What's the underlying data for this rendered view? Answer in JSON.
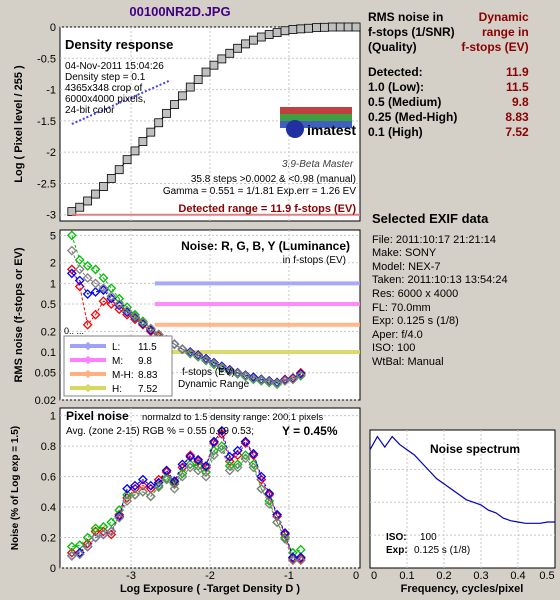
{
  "title": "00100NR2D.JPG",
  "density": {
    "heading": "Density response",
    "info": [
      "04-Nov-2011 15:04:26",
      "Density step = 0.1",
      "4365x348 crop of",
      "6000x4000 pixels,",
      "24-bit color"
    ],
    "logo": "imatest",
    "version": "3.9-Beta  Master",
    "stats": [
      "35.8 steps >0.0002 & <0.98 (manual)",
      "Gamma = 0.551 = 1/1.81  Exp.err = 1.26 EV"
    ],
    "detected": "Detected range = 11.9 f-stops (EV)",
    "ylabel": "Log ( Pixel level / 255 )",
    "yticks": [
      "0",
      "-0.5",
      "-1",
      "-1.5",
      "-2",
      "-2.5",
      "-3"
    ]
  },
  "noise": {
    "heading": "Noise: R, G, B, Y (Luminance)",
    "subheading": "in f-stops (EV)",
    "ylabel": "RMS noise (f-stops or EV)",
    "yticks": [
      "5",
      "2",
      "1",
      "0.5",
      "0.2",
      "0.1",
      "0.05",
      "0.02"
    ],
    "legend": [
      {
        "label": "L:",
        "value": "11.5",
        "color": "#a0a0ff"
      },
      {
        "label": "M:",
        "value": "9.8",
        "color": "#ff80ff"
      },
      {
        "label": "M-H:",
        "value": "8.83",
        "color": "#ffb080"
      },
      {
        "label": "H:",
        "value": "7.52",
        "color": "#d8d860"
      }
    ],
    "note1": "f-stops (EV)",
    "note2": "Dynamic Range",
    "partial": "0.. ..."
  },
  "pixel": {
    "heading": "Pixel noise",
    "norm": "normalzd to 1.5 density range: 200.1 pixels",
    "avg": "Avg. (zone 2-15) RGB % = 0.55  0.49  0.53;",
    "y": "Y = 0.45%",
    "ylabel": "Noise (% of Log exp = 1.5)",
    "yticks": [
      "1",
      "0.8",
      "0.6",
      "0.4",
      "0.2",
      "0"
    ],
    "xlabel": "Log Exposure ( -Target Density D )",
    "xticks": [
      "-3",
      "-2",
      "-1",
      "0"
    ]
  },
  "spectrum": {
    "heading": "Noise spectrum",
    "iso_label": "ISO:",
    "iso": "100",
    "exp_label": "Exp:",
    "exp": "0.125 s   (1/8)",
    "xlabel": "Frequency, cycles/pixel",
    "xticks": [
      "0",
      "0.1",
      "0.2",
      "0.3",
      "0.4",
      "0.5"
    ]
  },
  "rms_table": {
    "header": [
      [
        "RMS noise in",
        "Dynamic"
      ],
      [
        "f-stops (1/SNR)",
        "range in"
      ],
      [
        "(Quality)",
        "f-stops (EV)"
      ]
    ],
    "rows": [
      {
        "label": "Detected:",
        "value": "11.9"
      },
      {
        "label": "1.0   (Low):",
        "value": "11.5"
      },
      {
        "label": "0.5   (Medium)",
        "value": "9.8"
      },
      {
        "label": "0.25 (Med-High)",
        "value": "8.83"
      },
      {
        "label": "0.1   (High)",
        "value": "7.52"
      }
    ]
  },
  "exif": {
    "heading": "Selected EXIF data",
    "lines": [
      "File:  2011:10:17 21:21:14",
      "Make:  SONY",
      "Model: NEX-7",
      "Taken:  2011:10:13 13:54:24",
      "Res:    6000 x 4000",
      "FL:  70.0mm",
      "Exp:  0.125 s  (1/8)",
      "Aper:  f/4.0",
      "ISO:   100",
      "WtBal: Manual"
    ]
  },
  "colors": {
    "R": "#ff0000",
    "G": "#00c000",
    "B": "#0000ff",
    "Y": "#808080",
    "density_markers": "#a0a0a0",
    "fit_line": "#4040ff",
    "detected_text": "#8b0000",
    "title": "#400080"
  },
  "chart_data": [
    {
      "type": "line",
      "title": "Density response",
      "xlabel": "Log Exposure ( -Target Density D )",
      "ylabel": "Log ( Pixel level / 255 )",
      "xlim": [
        -3.9,
        -0.1
      ],
      "ylim": [
        -3.1,
        0
      ],
      "series": [
        {
          "name": "Density",
          "x": [
            -3.75,
            -3.65,
            -3.55,
            -3.45,
            -3.35,
            -3.25,
            -3.15,
            -3.05,
            -2.95,
            -2.85,
            -2.75,
            -2.65,
            -2.55,
            -2.45,
            -2.35,
            -2.25,
            -2.15,
            -2.05,
            -1.95,
            -1.85,
            -1.75,
            -1.65,
            -1.55,
            -1.45,
            -1.35,
            -1.25,
            -1.15,
            -1.05,
            -0.95,
            -0.85,
            -0.75,
            -0.65,
            -0.55,
            -0.45,
            -0.35,
            -0.25,
            -0.15
          ],
          "y": [
            -2.95,
            -2.88,
            -2.78,
            -2.67,
            -2.55,
            -2.42,
            -2.28,
            -2.12,
            -1.98,
            -1.83,
            -1.68,
            -1.53,
            -1.38,
            -1.24,
            -1.1,
            -0.96,
            -0.84,
            -0.72,
            -0.61,
            -0.51,
            -0.42,
            -0.34,
            -0.27,
            -0.21,
            -0.16,
            -0.12,
            -0.09,
            -0.06,
            -0.04,
            -0.03,
            -0.02,
            -0.01,
            -0.005,
            0,
            0,
            0,
            0
          ]
        }
      ]
    },
    {
      "type": "line",
      "title": "Noise: R, G, B, Y (Luminance)",
      "ylabel": "RMS noise (f-stops or EV)",
      "log_scale_y": true,
      "ylim": [
        0.02,
        6
      ],
      "x": [
        -3.75,
        -3.65,
        -3.55,
        -3.45,
        -3.35,
        -3.25,
        -3.15,
        -3.05,
        -2.95,
        -2.85,
        -2.75,
        -2.65,
        -2.55,
        -2.45,
        -2.35,
        -2.25,
        -2.15,
        -2.05,
        -1.95,
        -1.85,
        -1.75,
        -1.65,
        -1.55,
        -1.45,
        -1.35,
        -1.25,
        -1.15,
        -1.05,
        -0.95,
        -0.85
      ],
      "series": [
        {
          "name": "R",
          "values": [
            1.6,
            0.9,
            0.25,
            0.35,
            0.55,
            0.5,
            0.42,
            0.35,
            0.3,
            0.25,
            0.2,
            0.17,
            0.15,
            0.13,
            0.11,
            0.1,
            0.09,
            0.08,
            0.07,
            0.062,
            0.055,
            0.05,
            0.046,
            0.042,
            0.04,
            0.038,
            0.036,
            0.04,
            0.042,
            0.05
          ]
        },
        {
          "name": "G",
          "values": [
            5.0,
            2.2,
            1.8,
            1.6,
            1.2,
            0.85,
            0.6,
            0.45,
            0.35,
            0.28,
            0.22,
            0.18,
            0.15,
            0.13,
            0.11,
            0.095,
            0.085,
            0.075,
            0.066,
            0.058,
            0.052,
            0.048,
            0.044,
            0.04,
            0.038,
            0.036,
            0.034,
            0.038,
            0.04,
            0.045
          ]
        },
        {
          "name": "B",
          "values": [
            1.4,
            1.1,
            0.7,
            0.75,
            0.8,
            0.6,
            0.48,
            0.38,
            0.32,
            0.26,
            0.21,
            0.18,
            0.15,
            0.13,
            0.11,
            0.1,
            0.09,
            0.08,
            0.07,
            0.062,
            0.055,
            0.05,
            0.046,
            0.043,
            0.04,
            0.038,
            0.036,
            0.039,
            0.041,
            0.048
          ]
        },
        {
          "name": "Y",
          "values": [
            3.0,
            1.6,
            1.2,
            1.0,
            0.85,
            0.65,
            0.5,
            0.4,
            0.33,
            0.27,
            0.22,
            0.18,
            0.15,
            0.13,
            0.11,
            0.097,
            0.087,
            0.077,
            0.068,
            0.06,
            0.053,
            0.049,
            0.045,
            0.041,
            0.039,
            0.037,
            0.035,
            0.038,
            0.04,
            0.046
          ]
        }
      ],
      "thresholds": [
        {
          "label": "L",
          "value": 1.0
        },
        {
          "label": "M",
          "value": 0.5
        },
        {
          "label": "M-H",
          "value": 0.25
        },
        {
          "label": "H",
          "value": 0.1
        }
      ]
    },
    {
      "type": "line",
      "title": "Pixel noise",
      "xlabel": "Log Exposure ( -Target Density D )",
      "ylabel": "Noise (% of Log exp = 1.5)",
      "xlim": [
        -3.9,
        -0.1
      ],
      "ylim": [
        0,
        1.05
      ],
      "x": [
        -3.75,
        -3.65,
        -3.55,
        -3.45,
        -3.35,
        -3.25,
        -3.15,
        -3.05,
        -2.95,
        -2.85,
        -2.75,
        -2.65,
        -2.55,
        -2.45,
        -2.35,
        -2.25,
        -2.15,
        -2.05,
        -1.95,
        -1.85,
        -1.75,
        -1.65,
        -1.55,
        -1.45,
        -1.35,
        -1.25,
        -1.15,
        -1.05,
        -0.95,
        -0.85
      ],
      "series": [
        {
          "name": "R",
          "values": [
            0.1,
            0.1,
            0.16,
            0.24,
            0.24,
            0.22,
            0.35,
            0.46,
            0.52,
            0.54,
            0.52,
            0.58,
            0.63,
            0.56,
            0.66,
            0.74,
            0.7,
            0.66,
            0.82,
            0.88,
            0.7,
            0.74,
            0.82,
            0.74,
            0.58,
            0.48,
            0.34,
            0.22,
            0.06,
            0.06
          ]
        },
        {
          "name": "G",
          "values": [
            0.14,
            0.15,
            0.2,
            0.26,
            0.27,
            0.3,
            0.38,
            0.48,
            0.48,
            0.5,
            0.47,
            0.54,
            0.59,
            0.55,
            0.62,
            0.68,
            0.67,
            0.63,
            0.77,
            0.8,
            0.67,
            0.68,
            0.74,
            0.68,
            0.52,
            0.44,
            0.3,
            0.2,
            0.1,
            0.12
          ]
        },
        {
          "name": "B",
          "values": [
            0.08,
            0.1,
            0.14,
            0.2,
            0.22,
            0.24,
            0.34,
            0.52,
            0.54,
            0.58,
            0.54,
            0.56,
            0.64,
            0.57,
            0.68,
            0.73,
            0.71,
            0.67,
            0.83,
            0.9,
            0.73,
            0.77,
            0.83,
            0.75,
            0.6,
            0.49,
            0.35,
            0.23,
            0.07,
            0.07
          ]
        },
        {
          "name": "Y",
          "values": [
            0.08,
            0.09,
            0.14,
            0.2,
            0.22,
            0.24,
            0.33,
            0.44,
            0.48,
            0.5,
            0.47,
            0.53,
            0.58,
            0.52,
            0.6,
            0.66,
            0.64,
            0.6,
            0.74,
            0.78,
            0.64,
            0.66,
            0.72,
            0.66,
            0.52,
            0.42,
            0.3,
            0.19,
            0.05,
            0.05
          ]
        }
      ]
    },
    {
      "type": "line",
      "title": "Noise spectrum",
      "xlabel": "Frequency, cycles/pixel",
      "xlim": [
        0,
        0.5
      ],
      "series": [
        {
          "x": [
            0,
            0.02,
            0.04,
            0.06,
            0.08,
            0.1,
            0.12,
            0.14,
            0.16,
            0.18,
            0.2,
            0.22,
            0.24,
            0.26,
            0.28,
            0.3,
            0.32,
            0.34,
            0.36,
            0.38,
            0.4,
            0.42,
            0.44,
            0.46,
            0.48,
            0.5
          ],
          "y": [
            0.9,
            1.0,
            0.92,
            1.0,
            0.94,
            0.9,
            0.86,
            0.8,
            0.74,
            0.68,
            0.64,
            0.6,
            0.56,
            0.52,
            0.5,
            0.48,
            0.44,
            0.42,
            0.38,
            0.36,
            0.35,
            0.34,
            0.34,
            0.34,
            0.35,
            0.35
          ]
        }
      ]
    }
  ]
}
